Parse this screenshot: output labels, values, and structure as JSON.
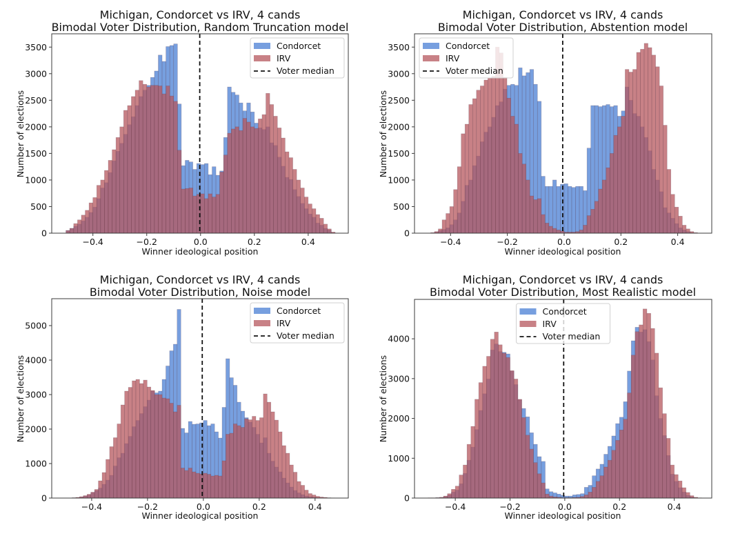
{
  "figure": {
    "background": "#ffffff",
    "colors": {
      "condorcet": "#4a7fd4",
      "irv": "#b5575d",
      "bar_opacity": 0.75,
      "bar_edge": "#5a3a4a",
      "median_line": "#111111"
    }
  },
  "chart_data": [
    {
      "type": "bar",
      "subtype": "overlaid-histogram",
      "title": "Michigan, Condorcet vs IRV, 4 cands",
      "subtitle": "Bimodal Voter Distribution, Random Truncation model",
      "xlabel": "Winner ideological position",
      "ylabel": "Number of elections",
      "xlim": [
        -0.553,
        0.549
      ],
      "ylim": [
        0,
        3750
      ],
      "xticks": [
        -0.4,
        -0.2,
        0.0,
        0.2,
        0.4
      ],
      "xtick_labels": [
        "−0.4",
        "−0.2",
        "0.0",
        "0.2",
        "0.4"
      ],
      "yticks": [
        0,
        500,
        1000,
        1500,
        2000,
        2500,
        3000,
        3500
      ],
      "ytick_labels": [
        "0",
        "500",
        "1000",
        "1500",
        "2000",
        "2500",
        "3000",
        "3500"
      ],
      "grid": false,
      "legend": {
        "placement": "top-right",
        "entries": [
          "Condorcet",
          "IRV",
          "Voter median"
        ]
      },
      "voter_median": -0.003,
      "bin_range": [
        -0.5,
        0.5
      ],
      "series": [
        {
          "name": "Condorcet",
          "values": [
            50,
            90,
            130,
            170,
            230,
            300,
            390,
            490,
            650,
            850,
            950,
            1140,
            1360,
            1540,
            1690,
            1860,
            2040,
            2190,
            2400,
            2570,
            2690,
            2780,
            2930,
            3050,
            3350,
            3230,
            3510,
            3530,
            3560,
            2430,
            1270,
            1370,
            1340,
            1200,
            1310,
            1290,
            1310,
            1100,
            1250,
            1090,
            1170,
            1800,
            2750,
            2650,
            2600,
            2450,
            2300,
            2450,
            2280,
            2070,
            1980,
            1950,
            2000,
            1700,
            1650,
            1430,
            1260,
            1050,
            1010,
            820,
            690,
            560,
            460,
            360,
            300,
            190,
            150,
            90,
            60,
            10
          ]
        },
        {
          "name": "IRV",
          "values": [
            50,
            90,
            180,
            250,
            340,
            430,
            570,
            670,
            900,
            1000,
            1180,
            1370,
            1570,
            1800,
            2000,
            2310,
            2400,
            2570,
            2690,
            2870,
            2800,
            2750,
            2780,
            2780,
            2770,
            2620,
            2770,
            2580,
            2480,
            1560,
            830,
            840,
            850,
            700,
            730,
            740,
            650,
            740,
            680,
            730,
            1150,
            1470,
            1880,
            1960,
            2000,
            1930,
            2160,
            2090,
            2000,
            1970,
            2150,
            2230,
            2630,
            2420,
            2200,
            1980,
            1790,
            1530,
            1420,
            1200,
            1000,
            850,
            680,
            550,
            460,
            350,
            280,
            170,
            80,
            20
          ]
        }
      ]
    },
    {
      "type": "bar",
      "subtype": "overlaid-histogram",
      "title": "Michigan, Condorcet vs IRV, 4 cands",
      "subtitle": "Bimodal Voter Distribution, Abstention model",
      "xlabel": "Winner ideological position",
      "ylabel": "Number of elections",
      "xlim": [
        -0.527,
        0.52
      ],
      "ylim": [
        0,
        3750
      ],
      "xticks": [
        -0.4,
        -0.2,
        0.0,
        0.2,
        0.4
      ],
      "xtick_labels": [
        "−0.4",
        "−0.2",
        "0.0",
        "0.2",
        "0.4"
      ],
      "yticks": [
        0,
        500,
        1000,
        1500,
        2000,
        2500,
        3000,
        3500
      ],
      "ytick_labels": [
        "0",
        "500",
        "1000",
        "1500",
        "2000",
        "2500",
        "3000",
        "3500"
      ],
      "grid": false,
      "legend": {
        "placement": "top-left",
        "entries": [
          "Condorcet",
          "IRV",
          "Voter median"
        ]
      },
      "voter_median": -0.005,
      "bin_range": [
        -0.47,
        0.47
      ],
      "series": [
        {
          "name": "Condorcet",
          "values": [
            5,
            20,
            50,
            70,
            100,
            160,
            250,
            380,
            600,
            900,
            1000,
            1270,
            1450,
            1720,
            1900,
            2000,
            2180,
            2400,
            2470,
            2710,
            2780,
            2800,
            2780,
            3110,
            2960,
            3020,
            3080,
            2800,
            2480,
            1070,
            880,
            880,
            1000,
            880,
            920,
            930,
            880,
            860,
            880,
            880,
            800,
            1600,
            2400,
            2400,
            2380,
            2400,
            2420,
            2380,
            2400,
            2200,
            2300,
            2750,
            2500,
            2250,
            2200,
            2000,
            1800,
            1550,
            1200,
            1000,
            780,
            480,
            380,
            280,
            180,
            100,
            60,
            30,
            10,
            5
          ]
        },
        {
          "name": "IRV",
          "values": [
            10,
            30,
            80,
            250,
            370,
            500,
            820,
            1250,
            1870,
            2050,
            2420,
            2530,
            2690,
            2770,
            2880,
            2920,
            2950,
            3500,
            3390,
            2930,
            2540,
            2200,
            2050,
            1500,
            1300,
            1000,
            700,
            630,
            650,
            350,
            190,
            130,
            90,
            60,
            40,
            20,
            20,
            20,
            30,
            60,
            150,
            330,
            450,
            600,
            830,
            1000,
            1230,
            1500,
            1840,
            2000,
            2200,
            3080,
            3030,
            3080,
            3400,
            3460,
            3570,
            3490,
            3350,
            3130,
            2770,
            2030,
            1200,
            730,
            490,
            320,
            150,
            80,
            30,
            10
          ]
        }
      ]
    },
    {
      "type": "bar",
      "subtype": "overlaid-histogram",
      "title": "Michigan, Condorcet vs IRV, 4 cands",
      "subtitle": "Bimodal Voter Distribution, Noise model",
      "xlabel": "Winner ideological position",
      "ylabel": "Number of elections",
      "xlim": [
        -0.543,
        0.519
      ],
      "ylim": [
        0,
        5780
      ],
      "xticks": [
        -0.4,
        -0.2,
        0.0,
        0.2,
        0.4
      ],
      "xtick_labels": [
        "−0.4",
        "−0.2",
        "0.0",
        "0.2",
        "0.4"
      ],
      "yticks": [
        0,
        1000,
        2000,
        3000,
        4000,
        5000
      ],
      "ytick_labels": [
        "0",
        "1000",
        "2000",
        "3000",
        "4000",
        "5000"
      ],
      "grid": false,
      "legend": {
        "placement": "top-right",
        "entries": [
          "Condorcet",
          "IRV",
          "Voter median"
        ]
      },
      "voter_median": -0.004,
      "bin_range": [
        -0.47,
        0.47
      ],
      "series": [
        {
          "name": "Condorcet",
          "values": [
            10,
            15,
            30,
            60,
            90,
            160,
            220,
            290,
            400,
            520,
            660,
            930,
            1170,
            1300,
            1580,
            1790,
            2070,
            2250,
            2450,
            2650,
            2840,
            3100,
            3050,
            3100,
            3440,
            3830,
            4270,
            4460,
            5470,
            2020,
            1890,
            2220,
            2140,
            2150,
            2180,
            2250,
            2100,
            2150,
            1920,
            1740,
            2630,
            4040,
            3490,
            3270,
            2780,
            2520,
            2330,
            2200,
            2050,
            1850,
            1600,
            1750,
            1300,
            1070,
            900,
            760,
            580,
            440,
            320,
            220,
            150,
            100,
            60,
            40,
            30,
            15,
            10,
            5,
            5,
            2
          ]
        },
        {
          "name": "IRV",
          "values": [
            10,
            20,
            40,
            70,
            110,
            170,
            250,
            500,
            740,
            1120,
            1490,
            1750,
            2150,
            2700,
            3100,
            3210,
            3400,
            3440,
            3320,
            3420,
            3220,
            3120,
            3000,
            3000,
            2900,
            2880,
            2750,
            2500,
            2690,
            870,
            800,
            870,
            760,
            720,
            700,
            720,
            690,
            640,
            660,
            640,
            1080,
            1850,
            1880,
            2150,
            2100,
            2050,
            2300,
            2270,
            2370,
            2250,
            2330,
            3020,
            2780,
            2500,
            2260,
            1920,
            1520,
            1300,
            960,
            750,
            480,
            370,
            230,
            130,
            90,
            50,
            30,
            20,
            10,
            5
          ]
        }
      ]
    },
    {
      "type": "bar",
      "subtype": "overlaid-histogram",
      "title": "Michigan, Condorcet vs IRV, 4 cands",
      "subtitle": "Bimodal Voter Distribution, Most Realistic model",
      "xlabel": "Winner ideological position",
      "ylabel": "Number of elections",
      "xlim": [
        -0.549,
        0.537
      ],
      "ylim": [
        0,
        4990
      ],
      "xticks": [
        -0.4,
        -0.2,
        0.0,
        0.2,
        0.4
      ],
      "xtick_labels": [
        "−0.4",
        "−0.2",
        "0.0",
        "0.2",
        "0.4"
      ],
      "yticks": [
        0,
        1000,
        2000,
        3000,
        4000
      ],
      "ytick_labels": [
        "0",
        "1000",
        "2000",
        "3000",
        "4000"
      ],
      "grid": false,
      "legend": {
        "placement": "top-center",
        "entries": [
          "Condorcet",
          "IRV",
          "Voter median"
        ]
      },
      "voter_median": -0.004,
      "bin_range": [
        -0.5,
        0.5
      ],
      "series": [
        {
          "name": "Condorcet",
          "values": [
            5,
            5,
            10,
            15,
            40,
            80,
            150,
            200,
            360,
            620,
            950,
            1280,
            1720,
            2200,
            2620,
            2990,
            3720,
            3870,
            3680,
            3660,
            3620,
            3190,
            2850,
            2470,
            2250,
            2040,
            1640,
            1350,
            1040,
            920,
            230,
            160,
            130,
            100,
            70,
            50,
            50,
            80,
            90,
            110,
            270,
            320,
            560,
            730,
            850,
            1100,
            1300,
            1560,
            1870,
            2030,
            2420,
            3190,
            3950,
            4290,
            4170,
            4230,
            3930,
            3470,
            2570,
            2000,
            1570,
            1070,
            600,
            420,
            260,
            150,
            70,
            30,
            10,
            5
          ]
        },
        {
          "name": "IRV",
          "values": [
            5,
            5,
            10,
            20,
            50,
            110,
            220,
            300,
            580,
            830,
            1350,
            1800,
            2480,
            2900,
            3310,
            3560,
            3990,
            4170,
            3850,
            3640,
            3530,
            3200,
            2990,
            2480,
            2020,
            1580,
            1230,
            890,
            610,
            380,
            100,
            50,
            30,
            20,
            10,
            10,
            10,
            15,
            20,
            40,
            80,
            150,
            270,
            420,
            560,
            780,
            950,
            1200,
            1450,
            1710,
            1980,
            2640,
            3590,
            4180,
            4350,
            4750,
            4640,
            4260,
            3640,
            2770,
            2120,
            1500,
            830,
            590,
            430,
            260,
            140,
            60,
            20,
            5
          ]
        }
      ]
    }
  ]
}
